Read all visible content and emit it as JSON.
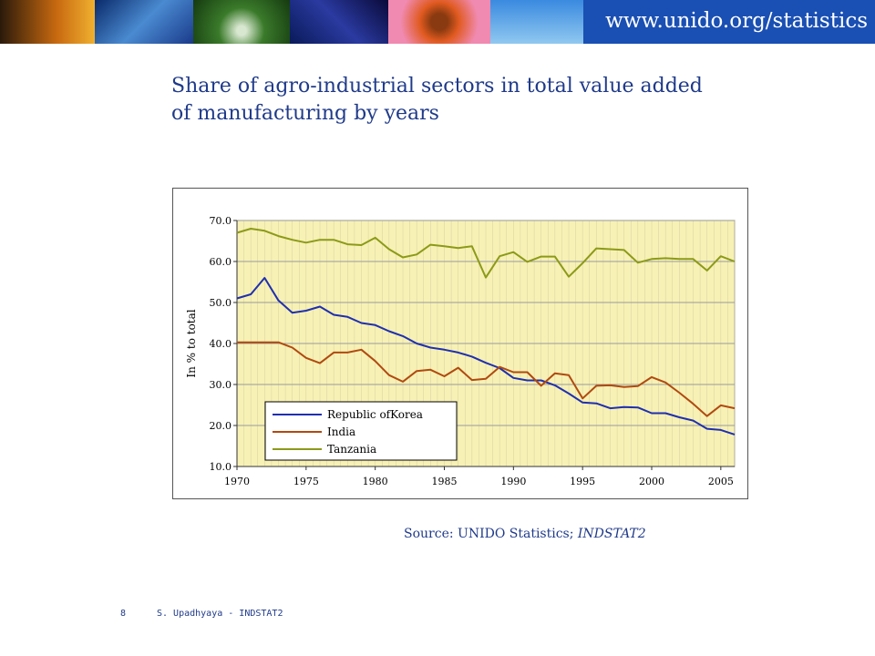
{
  "header": {
    "url": "www.unido.org/statistics",
    "brand_color": "#1a4fb3",
    "banner_images": [
      "silhouette-kite-photo",
      "test-tubes-photo",
      "green-leaves-photo",
      "circuit-board-photo",
      "flower-closeup-photo",
      "wind-turbines-photo"
    ]
  },
  "slide": {
    "title": "Share of agro-industrial sectors in total value added\nof manufacturing by years"
  },
  "chart_data": {
    "type": "line",
    "title": "",
    "xlabel": "",
    "ylabel": "In % to total",
    "xlim": [
      1970,
      2006
    ],
    "ylim": [
      10,
      70
    ],
    "x_ticks": [
      "1970",
      "1975",
      "1980",
      "1985",
      "1990",
      "1995",
      "2000",
      "2005"
    ],
    "y_ticks": [
      "10.0",
      "20.0",
      "30.0",
      "40.0",
      "50.0",
      "60.0",
      "70.0"
    ],
    "grid": true,
    "plot_background": "#f7f1b5",
    "legend_position": "bottom-left",
    "x": [
      1970,
      1971,
      1972,
      1973,
      1974,
      1975,
      1976,
      1977,
      1978,
      1979,
      1980,
      1981,
      1982,
      1983,
      1984,
      1985,
      1986,
      1987,
      1988,
      1989,
      1990,
      1991,
      1992,
      1993,
      1994,
      1995,
      1996,
      1997,
      1998,
      1999,
      2000,
      2001,
      2002,
      2003,
      2004,
      2005,
      2006
    ],
    "series": [
      {
        "name": "Republic ofKorea",
        "color": "#1f2fb0",
        "values": [
          51.0,
          52.0,
          56.0,
          50.5,
          47.5,
          48.0,
          49.0,
          47.0,
          46.5,
          45.0,
          44.5,
          43.0,
          41.8,
          40.0,
          39.0,
          38.5,
          37.8,
          36.8,
          35.3,
          34.0,
          31.6,
          31.0,
          31.0,
          29.8,
          27.8,
          25.6,
          25.4,
          24.2,
          24.5,
          24.4,
          23.0,
          23.0,
          22.0,
          21.2,
          19.2,
          18.9,
          17.8
        ]
      },
      {
        "name": "India",
        "color": "#b04a10",
        "values": [
          40.3,
          40.3,
          40.3,
          40.3,
          39.0,
          36.5,
          35.2,
          37.8,
          37.8,
          38.5,
          35.7,
          32.3,
          30.7,
          33.3,
          33.6,
          32.0,
          34.1,
          31.1,
          31.4,
          34.3,
          33.0,
          33.0,
          29.7,
          32.7,
          32.3,
          26.6,
          29.7,
          29.8,
          29.4,
          29.6,
          31.8,
          30.5,
          28.0,
          25.3,
          22.3,
          24.9,
          24.2
        ]
      },
      {
        "name": "Tanzania",
        "color": "#8c9a18",
        "values": [
          67.0,
          68.0,
          67.5,
          66.2,
          65.3,
          64.6,
          65.3,
          65.3,
          64.2,
          64.0,
          65.8,
          63.0,
          61.0,
          61.7,
          64.1,
          63.7,
          63.3,
          63.7,
          56.1,
          61.3,
          62.3,
          59.9,
          61.2,
          61.2,
          56.3,
          59.6,
          63.2,
          63.0,
          62.8,
          59.7,
          60.6,
          60.8,
          60.6,
          60.6,
          57.8,
          61.3,
          60.0
        ]
      }
    ]
  },
  "source": {
    "prefix": "Source: UNIDO Statistics; ",
    "dataset": "INDSTAT2"
  },
  "footer": {
    "page_number": "8",
    "author": "S. Upadhyaya - INDSTAT2"
  }
}
